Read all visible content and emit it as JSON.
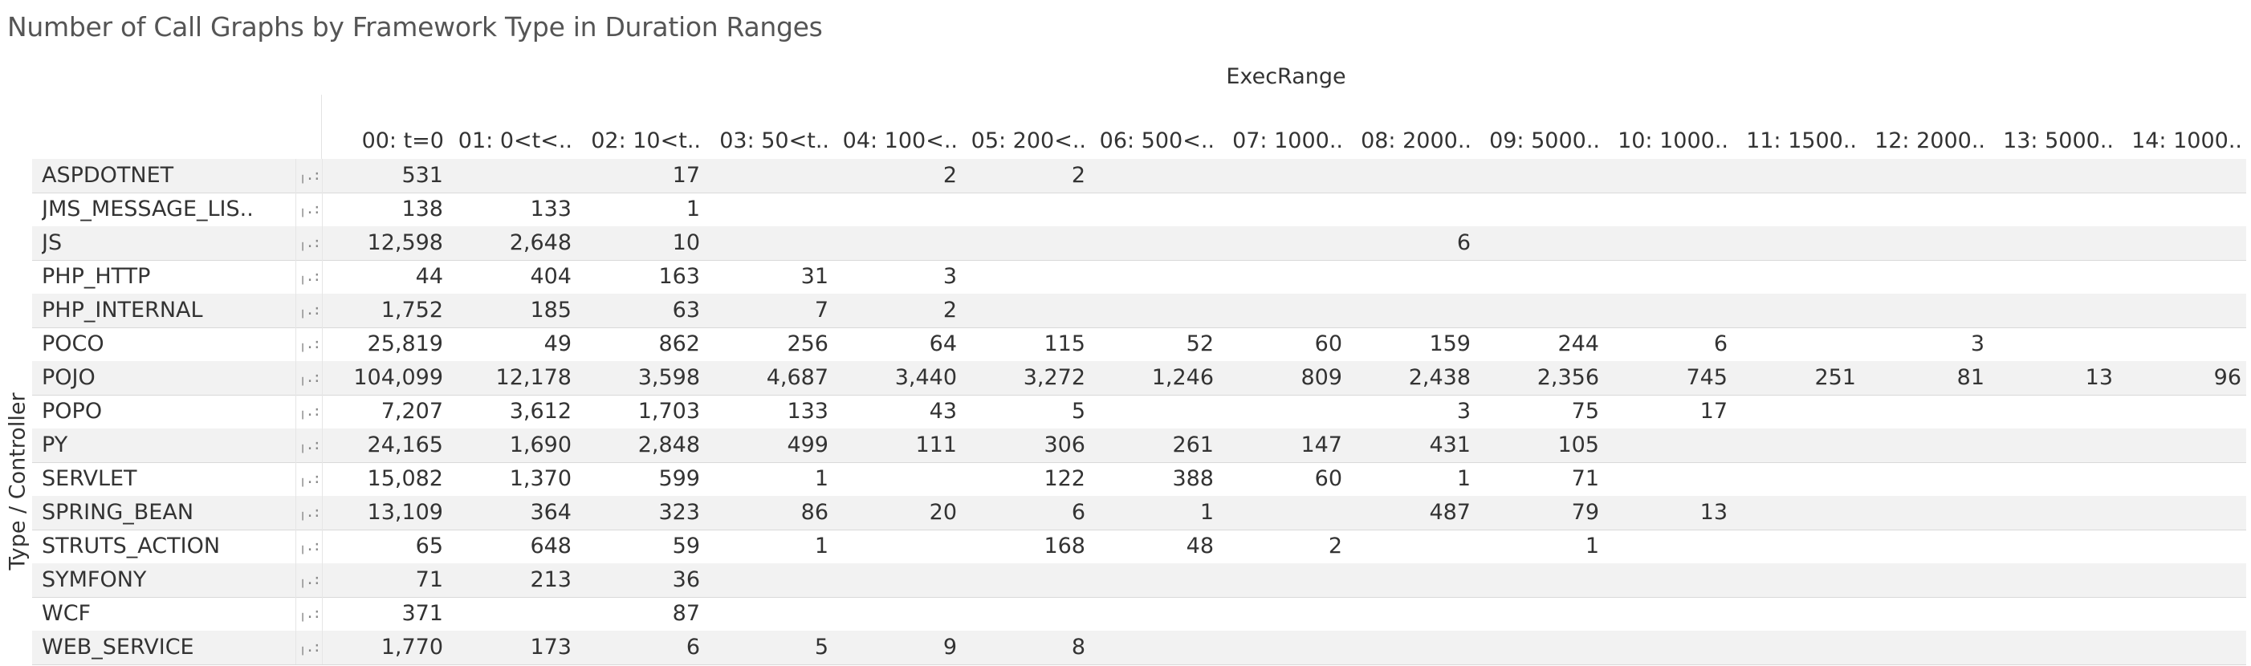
{
  "chart_data": {
    "type": "table",
    "title": "Number of Call Graphs by Framework Type in Duration Ranges",
    "column_axis_label": "ExecRange",
    "row_axis_label": "Type / Controller",
    "columns": [
      "00: t=0",
      "01: 0<t<..",
      "02: 10<t..",
      "03: 50<t..",
      "04: 100<..",
      "05: 200<..",
      "06: 500<..",
      "07: 1000..",
      "08: 2000..",
      "09: 5000..",
      "10: 1000..",
      "11: 1500..",
      "12: 2000..",
      "13: 5000..",
      "14: 1000.."
    ],
    "rows": [
      {
        "label": "ASPDOTNET",
        "values": [
          "531",
          "",
          "17",
          "",
          "2",
          "2",
          "",
          "",
          "",
          "",
          "",
          "",
          "",
          "",
          ""
        ]
      },
      {
        "label": "JMS_MESSAGE_LIS..",
        "values": [
          "138",
          "133",
          "1",
          "",
          "",
          "",
          "",
          "",
          "",
          "",
          "",
          "",
          "",
          "",
          ""
        ]
      },
      {
        "label": "JS",
        "values": [
          "12,598",
          "2,648",
          "10",
          "",
          "",
          "",
          "",
          "",
          "6",
          "",
          "",
          "",
          "",
          "",
          ""
        ]
      },
      {
        "label": "PHP_HTTP",
        "values": [
          "44",
          "404",
          "163",
          "31",
          "3",
          "",
          "",
          "",
          "",
          "",
          "",
          "",
          "",
          "",
          ""
        ]
      },
      {
        "label": "PHP_INTERNAL",
        "values": [
          "1,752",
          "185",
          "63",
          "7",
          "2",
          "",
          "",
          "",
          "",
          "",
          "",
          "",
          "",
          "",
          ""
        ]
      },
      {
        "label": "POCO",
        "values": [
          "25,819",
          "49",
          "862",
          "256",
          "64",
          "115",
          "52",
          "60",
          "159",
          "244",
          "6",
          "",
          "3",
          "",
          ""
        ]
      },
      {
        "label": "POJO",
        "values": [
          "104,099",
          "12,178",
          "3,598",
          "4,687",
          "3,440",
          "3,272",
          "1,246",
          "809",
          "2,438",
          "2,356",
          "745",
          "251",
          "81",
          "13",
          "96"
        ]
      },
      {
        "label": "POPO",
        "values": [
          "7,207",
          "3,612",
          "1,703",
          "133",
          "43",
          "5",
          "",
          "",
          "3",
          "75",
          "17",
          "",
          "",
          "",
          ""
        ]
      },
      {
        "label": "PY",
        "values": [
          "24,165",
          "1,690",
          "2,848",
          "499",
          "111",
          "306",
          "261",
          "147",
          "431",
          "105",
          "",
          "",
          "",
          "",
          ""
        ]
      },
      {
        "label": "SERVLET",
        "values": [
          "15,082",
          "1,370",
          "599",
          "1",
          "",
          "122",
          "388",
          "60",
          "1",
          "71",
          "",
          "",
          "",
          "",
          ""
        ]
      },
      {
        "label": "SPRING_BEAN",
        "values": [
          "13,109",
          "364",
          "323",
          "86",
          "20",
          "6",
          "1",
          "",
          "487",
          "79",
          "13",
          "",
          "",
          "",
          ""
        ]
      },
      {
        "label": "STRUTS_ACTION",
        "values": [
          "65",
          "648",
          "59",
          "1",
          "",
          "168",
          "48",
          "2",
          "",
          "1",
          "",
          "",
          "",
          "",
          ""
        ]
      },
      {
        "label": "SYMFONY",
        "values": [
          "71",
          "213",
          "36",
          "",
          "",
          "",
          "",
          "",
          "",
          "",
          "",
          "",
          "",
          "",
          ""
        ]
      },
      {
        "label": "WCF",
        "values": [
          "371",
          "",
          "87",
          "",
          "",
          "",
          "",
          "",
          "",
          "",
          "",
          "",
          "",
          "",
          ""
        ]
      },
      {
        "label": "WEB_SERVICE",
        "values": [
          "1,770",
          "173",
          "6",
          "5",
          "9",
          "8",
          "",
          "",
          "",
          "",
          "",
          "",
          "",
          "",
          ""
        ]
      }
    ],
    "grid": true,
    "row_banding": true
  },
  "row_marker_glyph": "╷.:"
}
